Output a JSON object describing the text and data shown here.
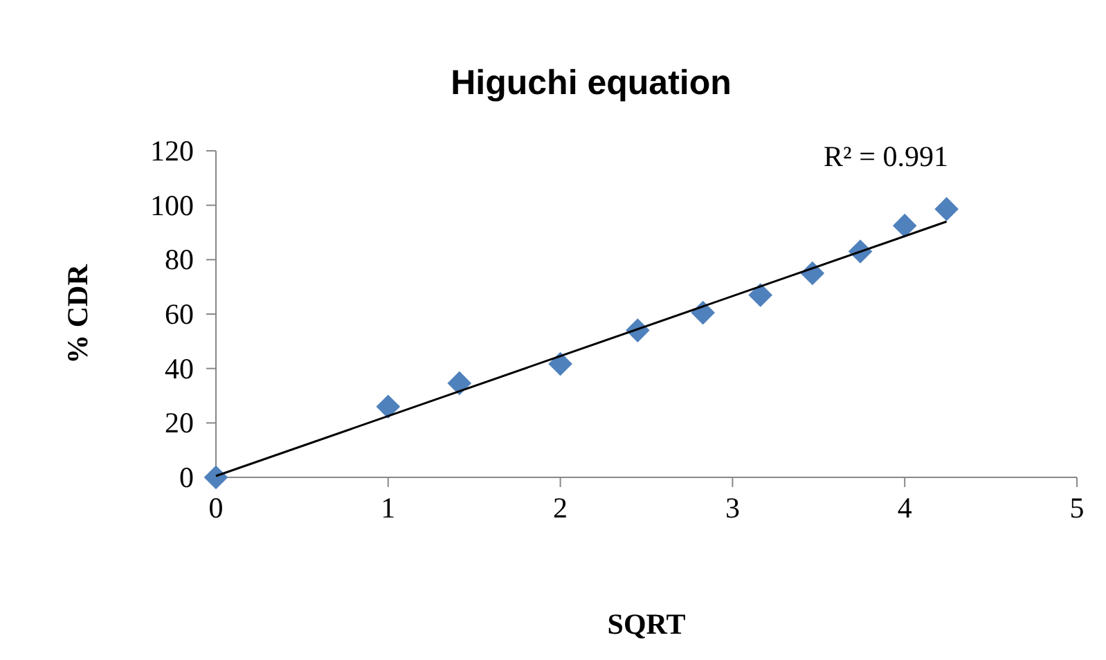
{
  "chart_data": {
    "type": "scatter",
    "title": "Higuchi equation",
    "xlabel": "SQRT",
    "ylabel": "% CDR",
    "xlim": [
      0,
      5
    ],
    "xticks": [
      0,
      1,
      2,
      3,
      4,
      5
    ],
    "ylim": [
      0,
      120
    ],
    "yticks": [
      0,
      20,
      40,
      60,
      80,
      100,
      120
    ],
    "marker": "diamond",
    "grid": false,
    "annotations": [
      "R² = 0.991"
    ],
    "series": [
      {
        "color": "#4f81bd",
        "x": [
          0,
          1,
          1.414,
          2,
          2.449,
          2.828,
          3.162,
          3.464,
          3.742,
          4,
          4.243
        ],
        "values": [
          0,
          26,
          34.6,
          41.7,
          54,
          60.5,
          67,
          75,
          83,
          92.5,
          98.6
        ]
      },
      {
        "type": "line",
        "color": "#000000",
        "marker": "none",
        "x": [
          0,
          4.243
        ],
        "values": [
          0.5,
          94
        ]
      }
    ]
  }
}
